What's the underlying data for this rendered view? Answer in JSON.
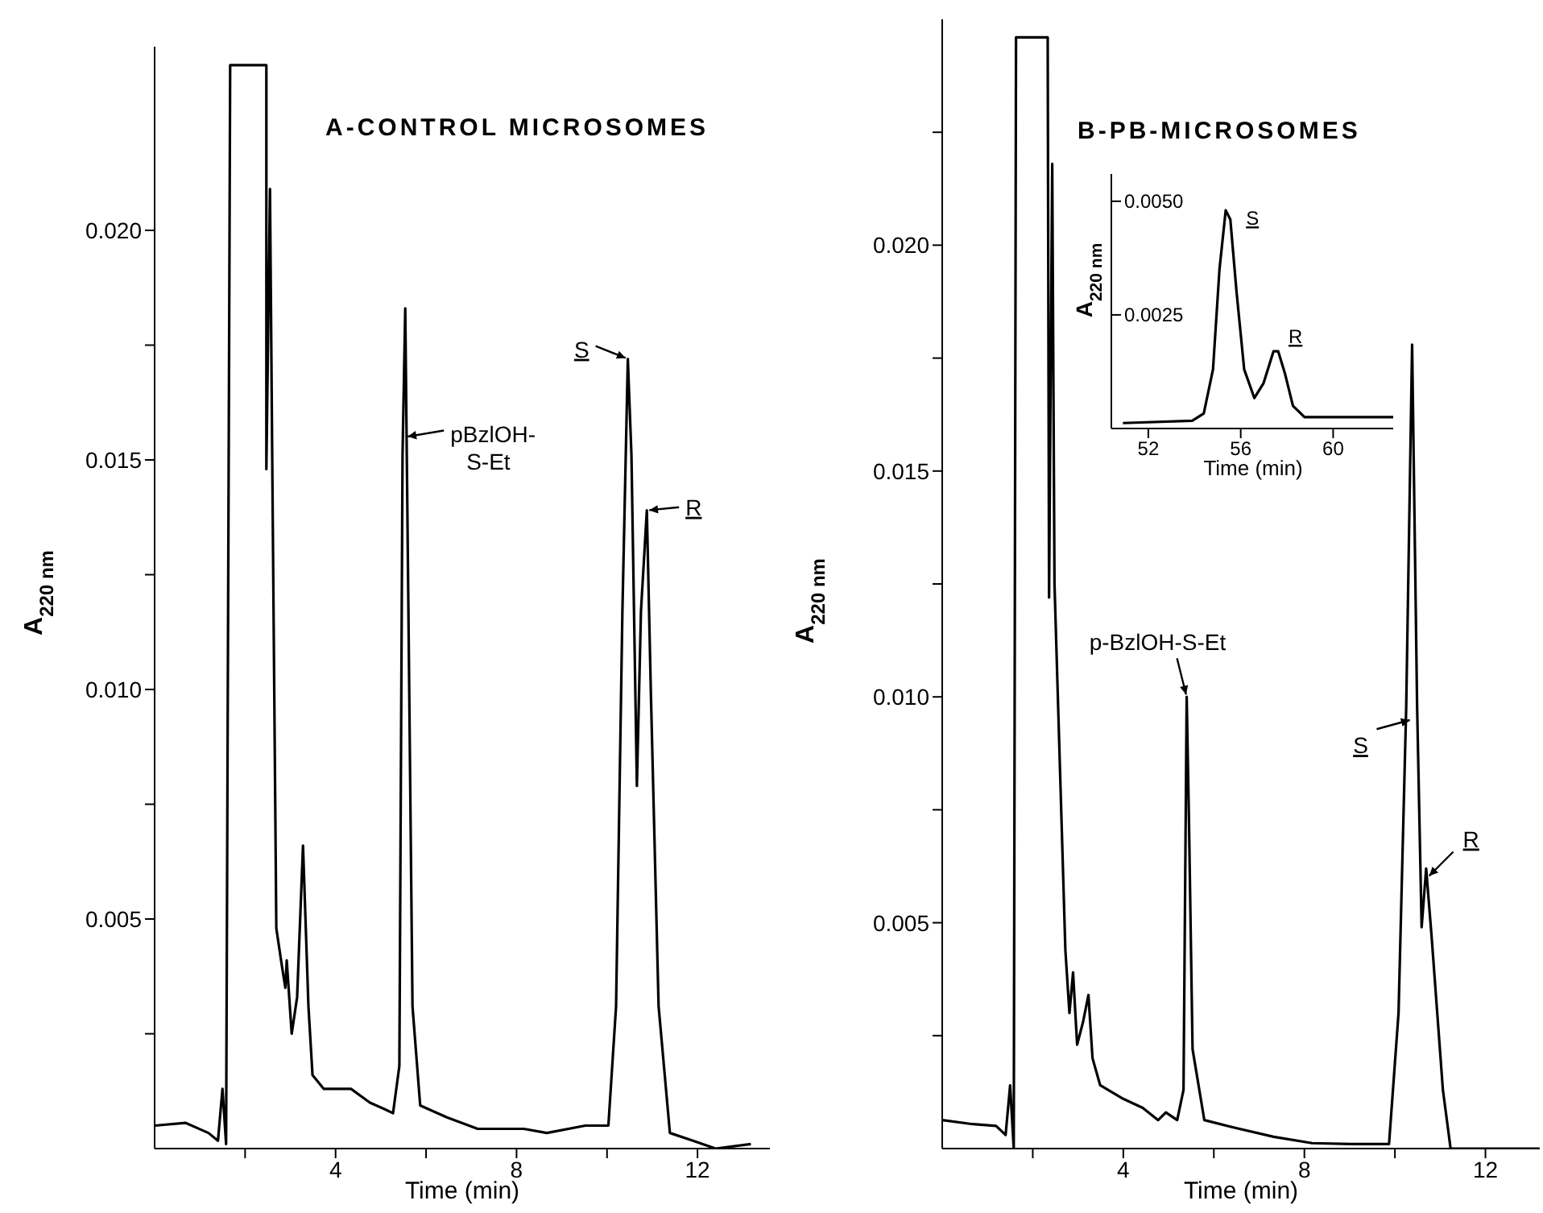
{
  "chart_data": [
    {
      "type": "line",
      "title": "A-CONTROL MICROSOMES",
      "xlabel": "Time (min)",
      "ylabel": "A$_{220 nm}$",
      "xlim": [
        0,
        13.6
      ],
      "ylim": [
        0,
        0.024
      ],
      "xticks": [
        {
          "value": 2,
          "label": null
        },
        4,
        {
          "value": 6,
          "label": null
        },
        8,
        {
          "value": 10,
          "label": null
        },
        12
      ],
      "yticks": [
        {
          "value": 0.0025,
          "label": null
        },
        0.005,
        {
          "value": 0.0075,
          "label": null
        },
        {
          "value": 0.01,
          "label": "0.010"
        },
        {
          "value": 0.0125,
          "label": null
        },
        0.015,
        {
          "value": 0.0175,
          "label": null
        },
        {
          "value": 0.02,
          "label": "0.020"
        }
      ],
      "annotations": [
        {
          "text": "pBzlOH-\nS-Et",
          "x": 5.54,
          "y": 0.0155
        },
        {
          "text": "S",
          "x": 10.46,
          "y": 0.0172
        },
        {
          "text": "R",
          "x": 10.88,
          "y": 0.0139
        }
      ],
      "series": [
        {
          "color": "#000000",
          "x": [
            0,
            0.68,
            1.19,
            1.4,
            1.5,
            1.58,
            1.67,
            2.47,
            2.47,
            2.55,
            2.6,
            2.69,
            2.81,
            2.89,
            2.92,
            3.03,
            3.15,
            3.28,
            3.4,
            3.49,
            3.74,
            4.34,
            4.76,
            5.1,
            5.27,
            5.41,
            5.48,
            5.54,
            5.61,
            5.7,
            5.87,
            6.46,
            7.14,
            8.16,
            8.67,
            9.52,
            10.03,
            10.2,
            10.34,
            10.46,
            10.54,
            10.66,
            10.75,
            10.88,
            10.97,
            11.14,
            11.39,
            11.9,
            12.4,
            13.18
          ],
          "values": [
            0.0005,
            0.00056,
            0.00034,
            0.00017,
            0.0013,
            0.0001,
            0.0236,
            0.0236,
            0.0148,
            0.0209,
            0.015,
            0.0048,
            0.004,
            0.0035,
            0.0041,
            0.0025,
            0.0033,
            0.0066,
            0.0031,
            0.0016,
            0.0013,
            0.0013,
            0.001,
            0.00085,
            0.00077,
            0.0018,
            0.0151,
            0.0183,
            0.0117,
            0.0031,
            0.00094,
            0.00068,
            0.00043,
            0.00043,
            0.00034,
            0.0005,
            0.0005,
            0.0031,
            0.0117,
            0.0172,
            0.0151,
            0.0079,
            0.0117,
            0.0139,
            0.0099,
            0.0031,
            0.00034,
            0.00017,
            0,
            0.0001
          ]
        }
      ]
    },
    {
      "type": "line",
      "title": "B-PB-MICROSOMES",
      "xlabel": "Time (min)",
      "ylabel": "A$_{220 nm}$",
      "xlim": [
        0,
        13.2
      ],
      "ylim": [
        0,
        0.025
      ],
      "xticks": [
        {
          "value": 2,
          "label": null
        },
        4,
        {
          "value": 6,
          "label": null
        },
        8,
        {
          "value": 10,
          "label": null
        },
        12
      ],
      "yticks": [
        {
          "value": 0.0025,
          "label": null
        },
        0.005,
        {
          "value": 0.0075,
          "label": null
        },
        {
          "value": 0.01,
          "label": "0.010"
        },
        {
          "value": 0.0125,
          "label": null
        },
        0.015,
        {
          "value": 0.0175,
          "label": null
        },
        {
          "value": 0.02,
          "label": "0.020"
        },
        {
          "value": 0.0225,
          "label": null
        }
      ],
      "annotations": [
        {
          "text": "p-BzlOH-S-Et",
          "x": 5.4,
          "y": 0.01
        },
        {
          "text": "S",
          "x": 10.38,
          "y": 0.0095
        },
        {
          "text": "R",
          "x": 10.72,
          "y": 0.006
        }
      ],
      "series": [
        {
          "color": "#000000",
          "x": [
            0,
            0.68,
            1.19,
            1.4,
            1.5,
            1.58,
            1.63,
            2.33,
            2.36,
            2.43,
            2.48,
            2.72,
            2.81,
            2.89,
            2.98,
            3.11,
            3.23,
            3.32,
            3.49,
            4,
            4.43,
            4.77,
            4.94,
            5.19,
            5.33,
            5.4,
            5.45,
            5.53,
            5.79,
            6.47,
            7.32,
            8.17,
            9.02,
            9.87,
            10.08,
            10.25,
            10.38,
            10.49,
            10.59,
            10.69,
            10.81,
            11.06,
            11.23,
            13.19
          ],
          "values": [
            0.00063,
            0.00054,
            0.0005,
            0.0003,
            0.0014,
            0,
            0.0246,
            0.0246,
            0.0122,
            0.0218,
            0.0125,
            0.0044,
            0.003,
            0.0039,
            0.0023,
            0.0028,
            0.0034,
            0.002,
            0.0014,
            0.0011,
            0.0009,
            0.00063,
            0.0008,
            0.00063,
            0.0013,
            0.01,
            0.0073,
            0.0022,
            0.00063,
            0.00046,
            0.00026,
            0.00012,
            0.0001,
            0.0001,
            0.003,
            0.0098,
            0.0178,
            0.0098,
            0.0049,
            0.0062,
            0.0047,
            0.0013,
            0,
            0
          ]
        }
      ]
    },
    {
      "type": "line",
      "xlabel": "Time (min)",
      "ylabel": "A$_{220 nm}$",
      "xlim": [
        50.4,
        62.6
      ],
      "ylim": [
        0,
        0.0056
      ],
      "xticks": [
        52,
        56,
        60
      ],
      "yticks": [
        0.0025,
        {
          "value": 0.005,
          "label": "0.0050"
        }
      ],
      "annotations": [
        {
          "text": "S",
          "x": 55.35,
          "y": 0.0048
        },
        {
          "text": "R",
          "x": 57.62,
          "y": 0.0017
        }
      ],
      "series": [
        {
          "color": "#000000",
          "x": [
            50.9,
            53.9,
            54.4,
            54.8,
            55.08,
            55.35,
            55.55,
            55.82,
            56.15,
            56.59,
            56.99,
            57.42,
            57.62,
            57.92,
            58.26,
            58.76,
            61.1,
            62.6
          ],
          "values": [
            0.00012,
            0.00017,
            0.00033,
            0.0013,
            0.0035,
            0.0048,
            0.0046,
            0.003,
            0.0013,
            0.00067,
            0.001,
            0.0017,
            0.0017,
            0.0012,
            0.0005,
            0.00025,
            0.00025,
            0.00025
          ]
        }
      ]
    }
  ]
}
